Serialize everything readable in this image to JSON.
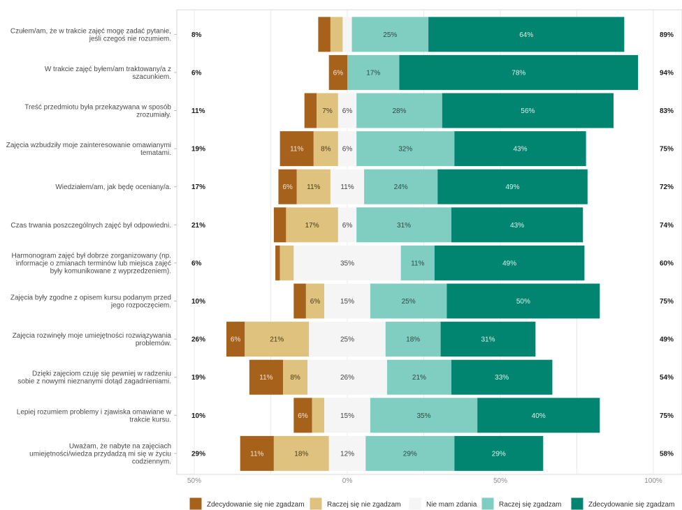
{
  "chart_data": {
    "type": "bar",
    "subtype": "diverging-stacked-likert",
    "x_ticks": [
      "50%",
      "0%",
      "50%",
      "100%"
    ],
    "x_range": [
      -50,
      100
    ],
    "grid": true,
    "legend_position": "bottom",
    "series": [
      {
        "name": "Zdecydowanie się nie zgadzam",
        "color": "#a6611a"
      },
      {
        "name": "Raczej się nie zgadzam",
        "color": "#dfc27d"
      },
      {
        "name": "Nie mam zdania",
        "color": "#f5f5f5"
      },
      {
        "name": "Raczej się zgadzam",
        "color": "#80cdc1"
      },
      {
        "name": "Zdecydowanie się zgadzam",
        "color": "#018571"
      }
    ],
    "items": [
      {
        "label": [
          "Czułem/am, że w trakcie zajęć mogę zadać pytanie,",
          "jeśli czegoś nie rozumiem."
        ],
        "left_total": "8%",
        "right_total": "89%",
        "values": [
          4,
          4,
          3,
          25,
          64
        ],
        "labels": [
          "",
          "",
          "",
          "25%",
          "64%"
        ]
      },
      {
        "label": [
          "W trakcie zajęć byłem/am traktowany/a z",
          "szacunkiem."
        ],
        "left_total": "6%",
        "right_total": "94%",
        "values": [
          6,
          0,
          0,
          17,
          78
        ],
        "labels": [
          "6%",
          "",
          "",
          "17%",
          "78%"
        ]
      },
      {
        "label": [
          "Treść przedmiotu była przekazywana w sposób",
          "zrozumiały."
        ],
        "left_total": "11%",
        "right_total": "83%",
        "values": [
          4,
          7,
          6,
          28,
          56
        ],
        "labels": [
          "",
          "7%",
          "6%",
          "28%",
          "56%"
        ]
      },
      {
        "label": [
          "Zajęcia wzbudziły moje zainteresowanie omawianymi",
          "tematami."
        ],
        "left_total": "19%",
        "right_total": "75%",
        "values": [
          11,
          8,
          6,
          32,
          43
        ],
        "labels": [
          "11%",
          "8%",
          "6%",
          "32%",
          "43%"
        ]
      },
      {
        "label": [
          "Wiedziałem/am, jak będę oceniany/a."
        ],
        "left_total": "17%",
        "right_total": "72%",
        "values": [
          6,
          11,
          11,
          24,
          49
        ],
        "labels": [
          "6%",
          "11%",
          "11%",
          "24%",
          "49%"
        ]
      },
      {
        "label": [
          "Czas trwania poszczególnych zajęć był odpowiedni."
        ],
        "left_total": "21%",
        "right_total": "74%",
        "values": [
          4,
          17,
          6,
          31,
          43
        ],
        "labels": [
          "",
          "17%",
          "6%",
          "31%",
          "43%"
        ]
      },
      {
        "label": [
          "Harmonogram zajęć był dobrze zorganizowany (np.",
          "informacje o zmianach terminów lub miejsca zajęć",
          "były komunikowane z wyprzedzeniem)."
        ],
        "left_total": "6%",
        "right_total": "60%",
        "values": [
          1.5,
          4.5,
          35,
          11,
          49
        ],
        "labels": [
          "",
          "",
          "35%",
          "11%",
          "49%"
        ]
      },
      {
        "label": [
          "Zajęcia były zgodne z opisem kursu podanym przed",
          "jego rozpoczęciem."
        ],
        "left_total": "10%",
        "right_total": "75%",
        "values": [
          4,
          6,
          15,
          25,
          50
        ],
        "labels": [
          "",
          "6%",
          "15%",
          "25%",
          "50%"
        ]
      },
      {
        "label": [
          "Zajęcia rozwinęły moje umiejętności rozwiązywania",
          "problemów."
        ],
        "left_total": "26%",
        "right_total": "49%",
        "values": [
          6,
          21,
          25,
          18,
          31
        ],
        "labels": [
          "6%",
          "21%",
          "25%",
          "18%",
          "31%"
        ]
      },
      {
        "label": [
          "Dzięki zajęciom czuję się pewniej w radzeniu",
          "sobie z nowymi nieznanymi dotąd zagadnieniami."
        ],
        "left_total": "19%",
        "right_total": "54%",
        "values": [
          11,
          8,
          26,
          21,
          33
        ],
        "labels": [
          "11%",
          "8%",
          "26%",
          "21%",
          "33%"
        ]
      },
      {
        "label": [
          "Lepiej rozumiem problemy i zjawiska omawiane w",
          "trakcie kursu."
        ],
        "left_total": "10%",
        "right_total": "75%",
        "values": [
          6,
          4,
          15,
          35,
          40
        ],
        "labels": [
          "6%",
          "",
          "15%",
          "35%",
          "40%"
        ]
      },
      {
        "label": [
          "Uważam, że nabyte na zajęciach",
          "umiejętności/wiedza przydadzą mi się w życiu",
          "codziennym."
        ],
        "left_total": "29%",
        "right_total": "58%",
        "values": [
          11,
          18,
          12,
          29,
          29
        ],
        "labels": [
          "11%",
          "18%",
          "12%",
          "29%",
          "29%"
        ]
      }
    ]
  }
}
